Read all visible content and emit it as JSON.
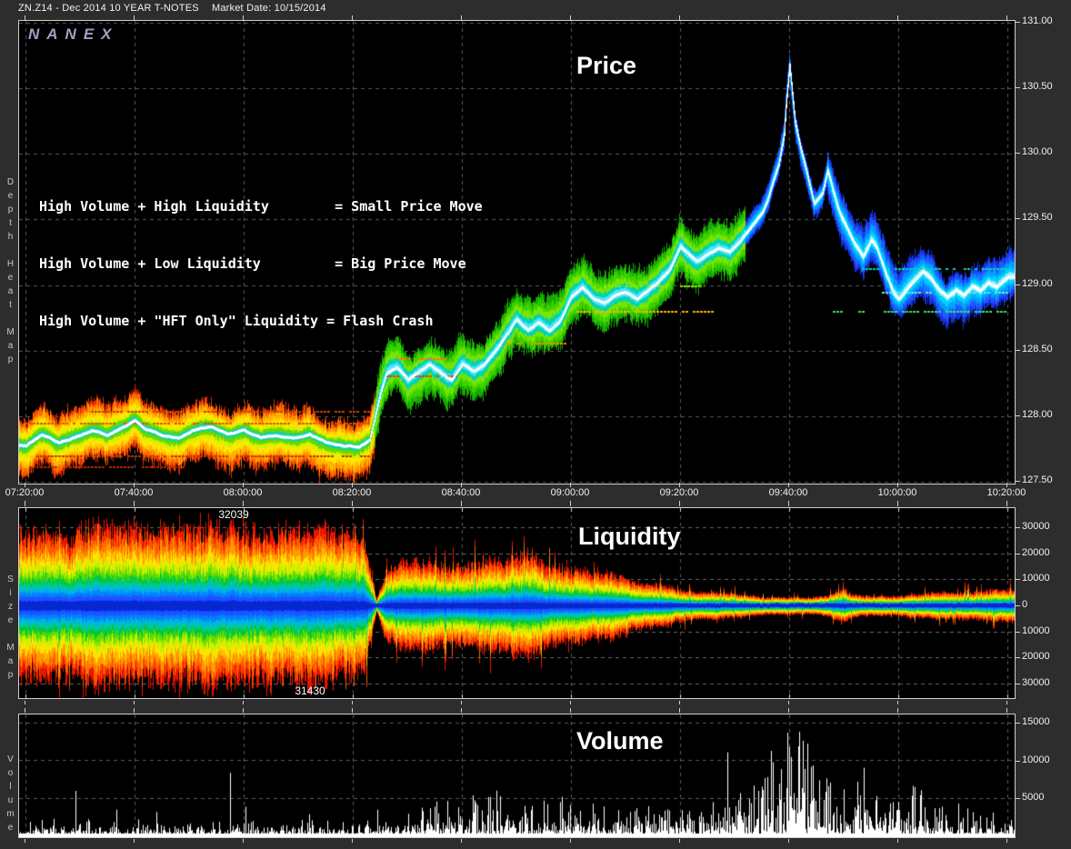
{
  "header": {
    "title": "ZN.Z14 - Dec 2014 10 YEAR T-NOTES",
    "market_date_label": "Market Date: 10/15/2014"
  },
  "logo": "NANEX",
  "annotation": {
    "line1": "High Volume + High Liquidity        = Small Price Move",
    "line2": "High Volume + Low Liquidity         = Big Price Move",
    "line3": "High Volume + \"HFT Only\" Liquidity = Flash Crash"
  },
  "panels": {
    "price": {
      "title": "Price",
      "side_label": "Depth Heat Map"
    },
    "liquidity": {
      "title": "Liquidity",
      "side_label": "Size Map",
      "max_ask": "32039",
      "max_bid": "31430"
    },
    "volume": {
      "title": "Volume",
      "side_label": "Volume"
    }
  },
  "colors": {
    "background": "#2d2d2d",
    "plot_bg": "#000000",
    "grid": "#5a5a5a",
    "border": "#cfcfcf",
    "label": "#f0f0f0",
    "trace": "#ffffff",
    "logo": "#a0a0c4"
  },
  "chart_data": [
    {
      "type": "area",
      "panel": "price",
      "title": "Price",
      "ylabel": "Depth Heat Map",
      "grid": true,
      "legend": "none",
      "ylim": [
        127.45,
        131.02
      ],
      "yticks": [
        "131.00",
        "130.50",
        "130.00",
        "129.50",
        "129.00",
        "128.50",
        "128.00",
        "127.50"
      ],
      "xticks": [
        "07:20:00",
        "07:40:00",
        "08:00:00",
        "08:20:00",
        "08:40:00",
        "09:00:00",
        "09:20:00",
        "09:40:00",
        "10:00:00",
        "10:20:00"
      ],
      "x_minutes_range": [
        0,
        180
      ],
      "price_keyframes": [
        [
          0,
          127.78
        ],
        [
          3,
          127.86
        ],
        [
          6,
          127.8
        ],
        [
          9,
          127.84
        ],
        [
          12,
          127.9
        ],
        [
          15,
          127.86
        ],
        [
          18,
          127.92
        ],
        [
          20,
          127.97
        ],
        [
          22,
          127.9
        ],
        [
          25,
          127.86
        ],
        [
          28,
          127.84
        ],
        [
          31,
          127.9
        ],
        [
          34,
          127.92
        ],
        [
          37,
          127.87
        ],
        [
          40,
          127.9
        ],
        [
          43,
          127.84
        ],
        [
          46,
          127.86
        ],
        [
          49,
          127.83
        ],
        [
          52,
          127.86
        ],
        [
          55,
          127.8
        ],
        [
          58,
          127.78
        ],
        [
          61,
          127.77
        ],
        [
          63,
          127.82
        ],
        [
          64,
          128.0
        ],
        [
          65,
          128.18
        ],
        [
          66,
          128.32
        ],
        [
          68,
          128.38
        ],
        [
          70,
          128.28
        ],
        [
          72,
          128.34
        ],
        [
          74,
          128.4
        ],
        [
          76,
          128.33
        ],
        [
          78,
          128.28
        ],
        [
          80,
          128.4
        ],
        [
          82,
          128.34
        ],
        [
          84,
          128.4
        ],
        [
          86,
          128.5
        ],
        [
          88,
          128.62
        ],
        [
          90,
          128.74
        ],
        [
          92,
          128.66
        ],
        [
          94,
          128.72
        ],
        [
          96,
          128.66
        ],
        [
          98,
          128.74
        ],
        [
          100,
          128.92
        ],
        [
          102,
          128.98
        ],
        [
          104,
          128.9
        ],
        [
          106,
          128.86
        ],
        [
          108,
          128.92
        ],
        [
          110,
          128.94
        ],
        [
          112,
          128.9
        ],
        [
          114,
          128.96
        ],
        [
          116,
          129.03
        ],
        [
          118,
          129.12
        ],
        [
          120,
          129.3
        ],
        [
          121,
          129.26
        ],
        [
          123,
          129.18
        ],
        [
          125,
          129.24
        ],
        [
          127,
          129.28
        ],
        [
          129,
          129.26
        ],
        [
          131,
          129.34
        ],
        [
          133,
          129.45
        ],
        [
          135,
          129.55
        ],
        [
          136,
          129.65
        ],
        [
          137,
          129.8
        ],
        [
          138,
          129.92
        ],
        [
          139,
          130.15
        ],
        [
          139.3,
          130.35
        ],
        [
          140,
          130.68
        ],
        [
          141,
          130.25
        ],
        [
          142,
          130.05
        ],
        [
          143.5,
          129.8
        ],
        [
          144.5,
          129.62
        ],
        [
          146,
          129.7
        ],
        [
          147,
          129.88
        ],
        [
          148,
          129.72
        ],
        [
          149,
          129.58
        ],
        [
          150,
          129.48
        ],
        [
          151,
          129.4
        ],
        [
          152,
          129.32
        ],
        [
          153.5,
          129.22
        ],
        [
          155,
          129.35
        ],
        [
          156,
          129.28
        ],
        [
          157.5,
          129.1
        ],
        [
          159,
          128.95
        ],
        [
          160,
          128.9
        ],
        [
          161.5,
          128.97
        ],
        [
          163,
          129.05
        ],
        [
          164.5,
          129.12
        ],
        [
          166,
          129.05
        ],
        [
          167.5,
          128.97
        ],
        [
          169,
          128.92
        ],
        [
          170.5,
          128.97
        ],
        [
          172,
          128.93
        ],
        [
          173.5,
          129.0
        ],
        [
          175,
          128.96
        ],
        [
          176.5,
          129.02
        ],
        [
          178,
          128.98
        ],
        [
          180,
          129.06
        ]
      ],
      "band_segments": [
        {
          "t0": 0,
          "t1": 64,
          "palette": "warm",
          "half_up": 0.2,
          "half_dn": 0.22
        },
        {
          "t0": 64,
          "t1": 132,
          "palette": "green",
          "half_up": 0.2,
          "half_dn": 0.2
        },
        {
          "t0": 132,
          "t1": 147,
          "palette": "blue",
          "half_up": 0.1,
          "half_dn": 0.1
        },
        {
          "t0": 147,
          "t1": 181,
          "palette": "blue",
          "half_up": 0.18,
          "half_dn": 0.18
        }
      ],
      "palettes": {
        "warm": [
          [
            1.0,
            "#e02800"
          ],
          [
            0.9,
            "#ff6a00"
          ],
          [
            0.74,
            "#ffb400"
          ],
          [
            0.55,
            "#ffe800"
          ],
          [
            0.38,
            "#d8f000"
          ],
          [
            0.26,
            "#66d800"
          ],
          [
            0.13,
            "#00d8a0"
          ],
          [
            0.07,
            "#40c8ff"
          ]
        ],
        "green": [
          [
            1.0,
            "#14aa00"
          ],
          [
            0.78,
            "#3cd200"
          ],
          [
            0.55,
            "#78e600"
          ],
          [
            0.33,
            "#00d2b4"
          ],
          [
            0.16,
            "#50e6ff"
          ]
        ],
        "blue": [
          [
            1.0,
            "#1432e6"
          ],
          [
            0.78,
            "#1e5aff"
          ],
          [
            0.55,
            "#00a0ff"
          ],
          [
            0.32,
            "#00d2ff"
          ],
          [
            0.15,
            "#96f0ff"
          ]
        ]
      },
      "streaks": [
        [
          2,
          63,
          127.7,
          "#c83200"
        ],
        [
          0,
          63,
          127.95,
          "#e65000"
        ],
        [
          12,
          63,
          128.04,
          "#d23c00"
        ],
        [
          0,
          30,
          127.62,
          "#b42800"
        ],
        [
          66,
          79,
          128.31,
          "#e63c00"
        ],
        [
          68,
          77,
          128.44,
          "#ff7800"
        ],
        [
          88,
          99,
          128.56,
          "#ff8c00"
        ],
        [
          101,
          126,
          128.8,
          "#ffb400"
        ],
        [
          106,
          124,
          129.0,
          "#96e600"
        ],
        [
          148,
          180,
          128.8,
          "#32e664"
        ],
        [
          152,
          180,
          129.13,
          "#00dcaa"
        ],
        [
          157,
          180,
          128.95,
          "#64f0c8"
        ]
      ]
    },
    {
      "type": "area",
      "panel": "liquidity",
      "title": "Liquidity",
      "ylabel": "Size Map",
      "grid": true,
      "ylim": [
        -33000,
        33000
      ],
      "yticks": [
        "30000",
        "20000",
        "10000",
        "0",
        "10000",
        "20000",
        "30000"
      ],
      "max_ask": 32039,
      "max_bid": 31430,
      "amplitude_keyframes_thousands": [
        [
          0,
          27
        ],
        [
          10,
          27.5
        ],
        [
          20,
          28
        ],
        [
          30,
          28
        ],
        [
          40,
          28.5
        ],
        [
          48,
          28
        ],
        [
          55,
          27
        ],
        [
          60,
          26
        ],
        [
          62,
          24
        ],
        [
          63.5,
          10
        ],
        [
          64.3,
          2
        ],
        [
          65,
          6
        ],
        [
          66,
          12
        ],
        [
          68,
          15
        ],
        [
          71,
          16.5
        ],
        [
          74,
          15.5
        ],
        [
          77,
          14.5
        ],
        [
          80,
          14
        ],
        [
          83,
          15
        ],
        [
          86,
          16
        ],
        [
          89,
          18
        ],
        [
          92,
          19.5
        ],
        [
          94,
          17
        ],
        [
          96,
          14.5
        ],
        [
          99,
          13.5
        ],
        [
          102,
          13
        ],
        [
          105,
          12.5
        ],
        [
          108,
          11
        ],
        [
          111,
          9
        ],
        [
          113,
          8
        ],
        [
          116,
          7.5
        ],
        [
          119,
          6
        ],
        [
          121,
          5.5
        ],
        [
          124,
          5
        ],
        [
          127,
          4.8
        ],
        [
          130,
          4.4
        ],
        [
          133,
          3.8
        ],
        [
          136,
          3.2
        ],
        [
          139,
          3
        ],
        [
          142,
          3
        ],
        [
          145,
          3.2
        ],
        [
          147,
          3.8
        ],
        [
          149,
          5
        ],
        [
          150,
          6.5
        ],
        [
          151,
          5
        ],
        [
          153,
          4
        ],
        [
          155,
          3.6
        ],
        [
          158,
          3.4
        ],
        [
          161,
          3.6
        ],
        [
          164,
          4
        ],
        [
          167,
          4.4
        ],
        [
          170,
          4.8
        ],
        [
          173,
          5.2
        ],
        [
          176,
          5.4
        ],
        [
          180,
          5.8
        ]
      ],
      "forced_spikes": {
        "ask": [
          [
            38,
            32.0
          ]
        ],
        "bid": [
          [
            52,
            31.4
          ]
        ]
      },
      "layers": [
        [
          1.0,
          "#e81400"
        ],
        [
          0.88,
          "#ff5a00"
        ],
        [
          0.76,
          "#ff9c00"
        ],
        [
          0.64,
          "#ffe400"
        ],
        [
          0.54,
          "#c8f000"
        ],
        [
          0.45,
          "#64dc00"
        ],
        [
          0.37,
          "#00c83c"
        ],
        [
          0.3,
          "#00c8a0"
        ],
        [
          0.24,
          "#00b4e6"
        ],
        [
          0.18,
          "#0082ff"
        ],
        [
          0.12,
          "#2050ff"
        ],
        [
          0.06,
          "#0028dc"
        ]
      ],
      "center_color": "#0a28c8"
    },
    {
      "type": "bar",
      "panel": "volume",
      "title": "Volume",
      "ylabel": "Volume",
      "grid": true,
      "ylim": [
        0,
        16300
      ],
      "yticks": [
        "15000",
        "10000",
        "5000"
      ],
      "envelope_keyframes": [
        [
          0,
          700
        ],
        [
          10,
          650
        ],
        [
          20,
          700
        ],
        [
          30,
          750
        ],
        [
          37,
          800
        ],
        [
          45,
          700
        ],
        [
          55,
          600
        ],
        [
          62,
          700
        ],
        [
          64,
          1300
        ],
        [
          68,
          1400
        ],
        [
          72,
          1500
        ],
        [
          76,
          1600
        ],
        [
          80,
          1700
        ],
        [
          85,
          1900
        ],
        [
          90,
          2000
        ],
        [
          95,
          1800
        ],
        [
          100,
          1700
        ],
        [
          105,
          1500
        ],
        [
          110,
          1400
        ],
        [
          115,
          1500
        ],
        [
          120,
          1500
        ],
        [
          125,
          1700
        ],
        [
          130,
          2400
        ],
        [
          134,
          3200
        ],
        [
          137,
          4200
        ],
        [
          140,
          5200
        ],
        [
          142,
          4600
        ],
        [
          145,
          3400
        ],
        [
          148,
          2800
        ],
        [
          151,
          2500
        ],
        [
          154,
          2300
        ],
        [
          157,
          2000
        ],
        [
          160,
          1900
        ],
        [
          163,
          2000
        ],
        [
          166,
          1700
        ],
        [
          169,
          1500
        ],
        [
          172,
          1300
        ],
        [
          175,
          1100
        ],
        [
          178,
          950
        ],
        [
          180,
          850
        ]
      ],
      "spikes": [
        [
          9.2,
          5900
        ],
        [
          24,
          3100
        ],
        [
          37.5,
          8300
        ],
        [
          52,
          2800
        ],
        [
          64.5,
          3400
        ],
        [
          75,
          3800
        ],
        [
          87,
          5200
        ],
        [
          95,
          4600
        ],
        [
          104,
          4200
        ],
        [
          112,
          3600
        ],
        [
          118,
          3300
        ],
        [
          126,
          4400
        ],
        [
          131,
          5600
        ],
        [
          133.5,
          6600
        ],
        [
          135.5,
          7600
        ],
        [
          137,
          9700
        ],
        [
          138.5,
          8800
        ],
        [
          139.6,
          13600
        ],
        [
          140.4,
          10400
        ],
        [
          141.7,
          11800
        ],
        [
          142.8,
          8800
        ],
        [
          144,
          9100
        ],
        [
          145.5,
          7300
        ],
        [
          147.5,
          6400
        ],
        [
          150,
          6100
        ],
        [
          152.5,
          7100
        ],
        [
          156,
          5200
        ],
        [
          159,
          4400
        ],
        [
          163,
          6400
        ],
        [
          164.2,
          6000
        ],
        [
          168,
          3800
        ],
        [
          171,
          4200
        ],
        [
          175,
          2600
        ]
      ]
    }
  ]
}
